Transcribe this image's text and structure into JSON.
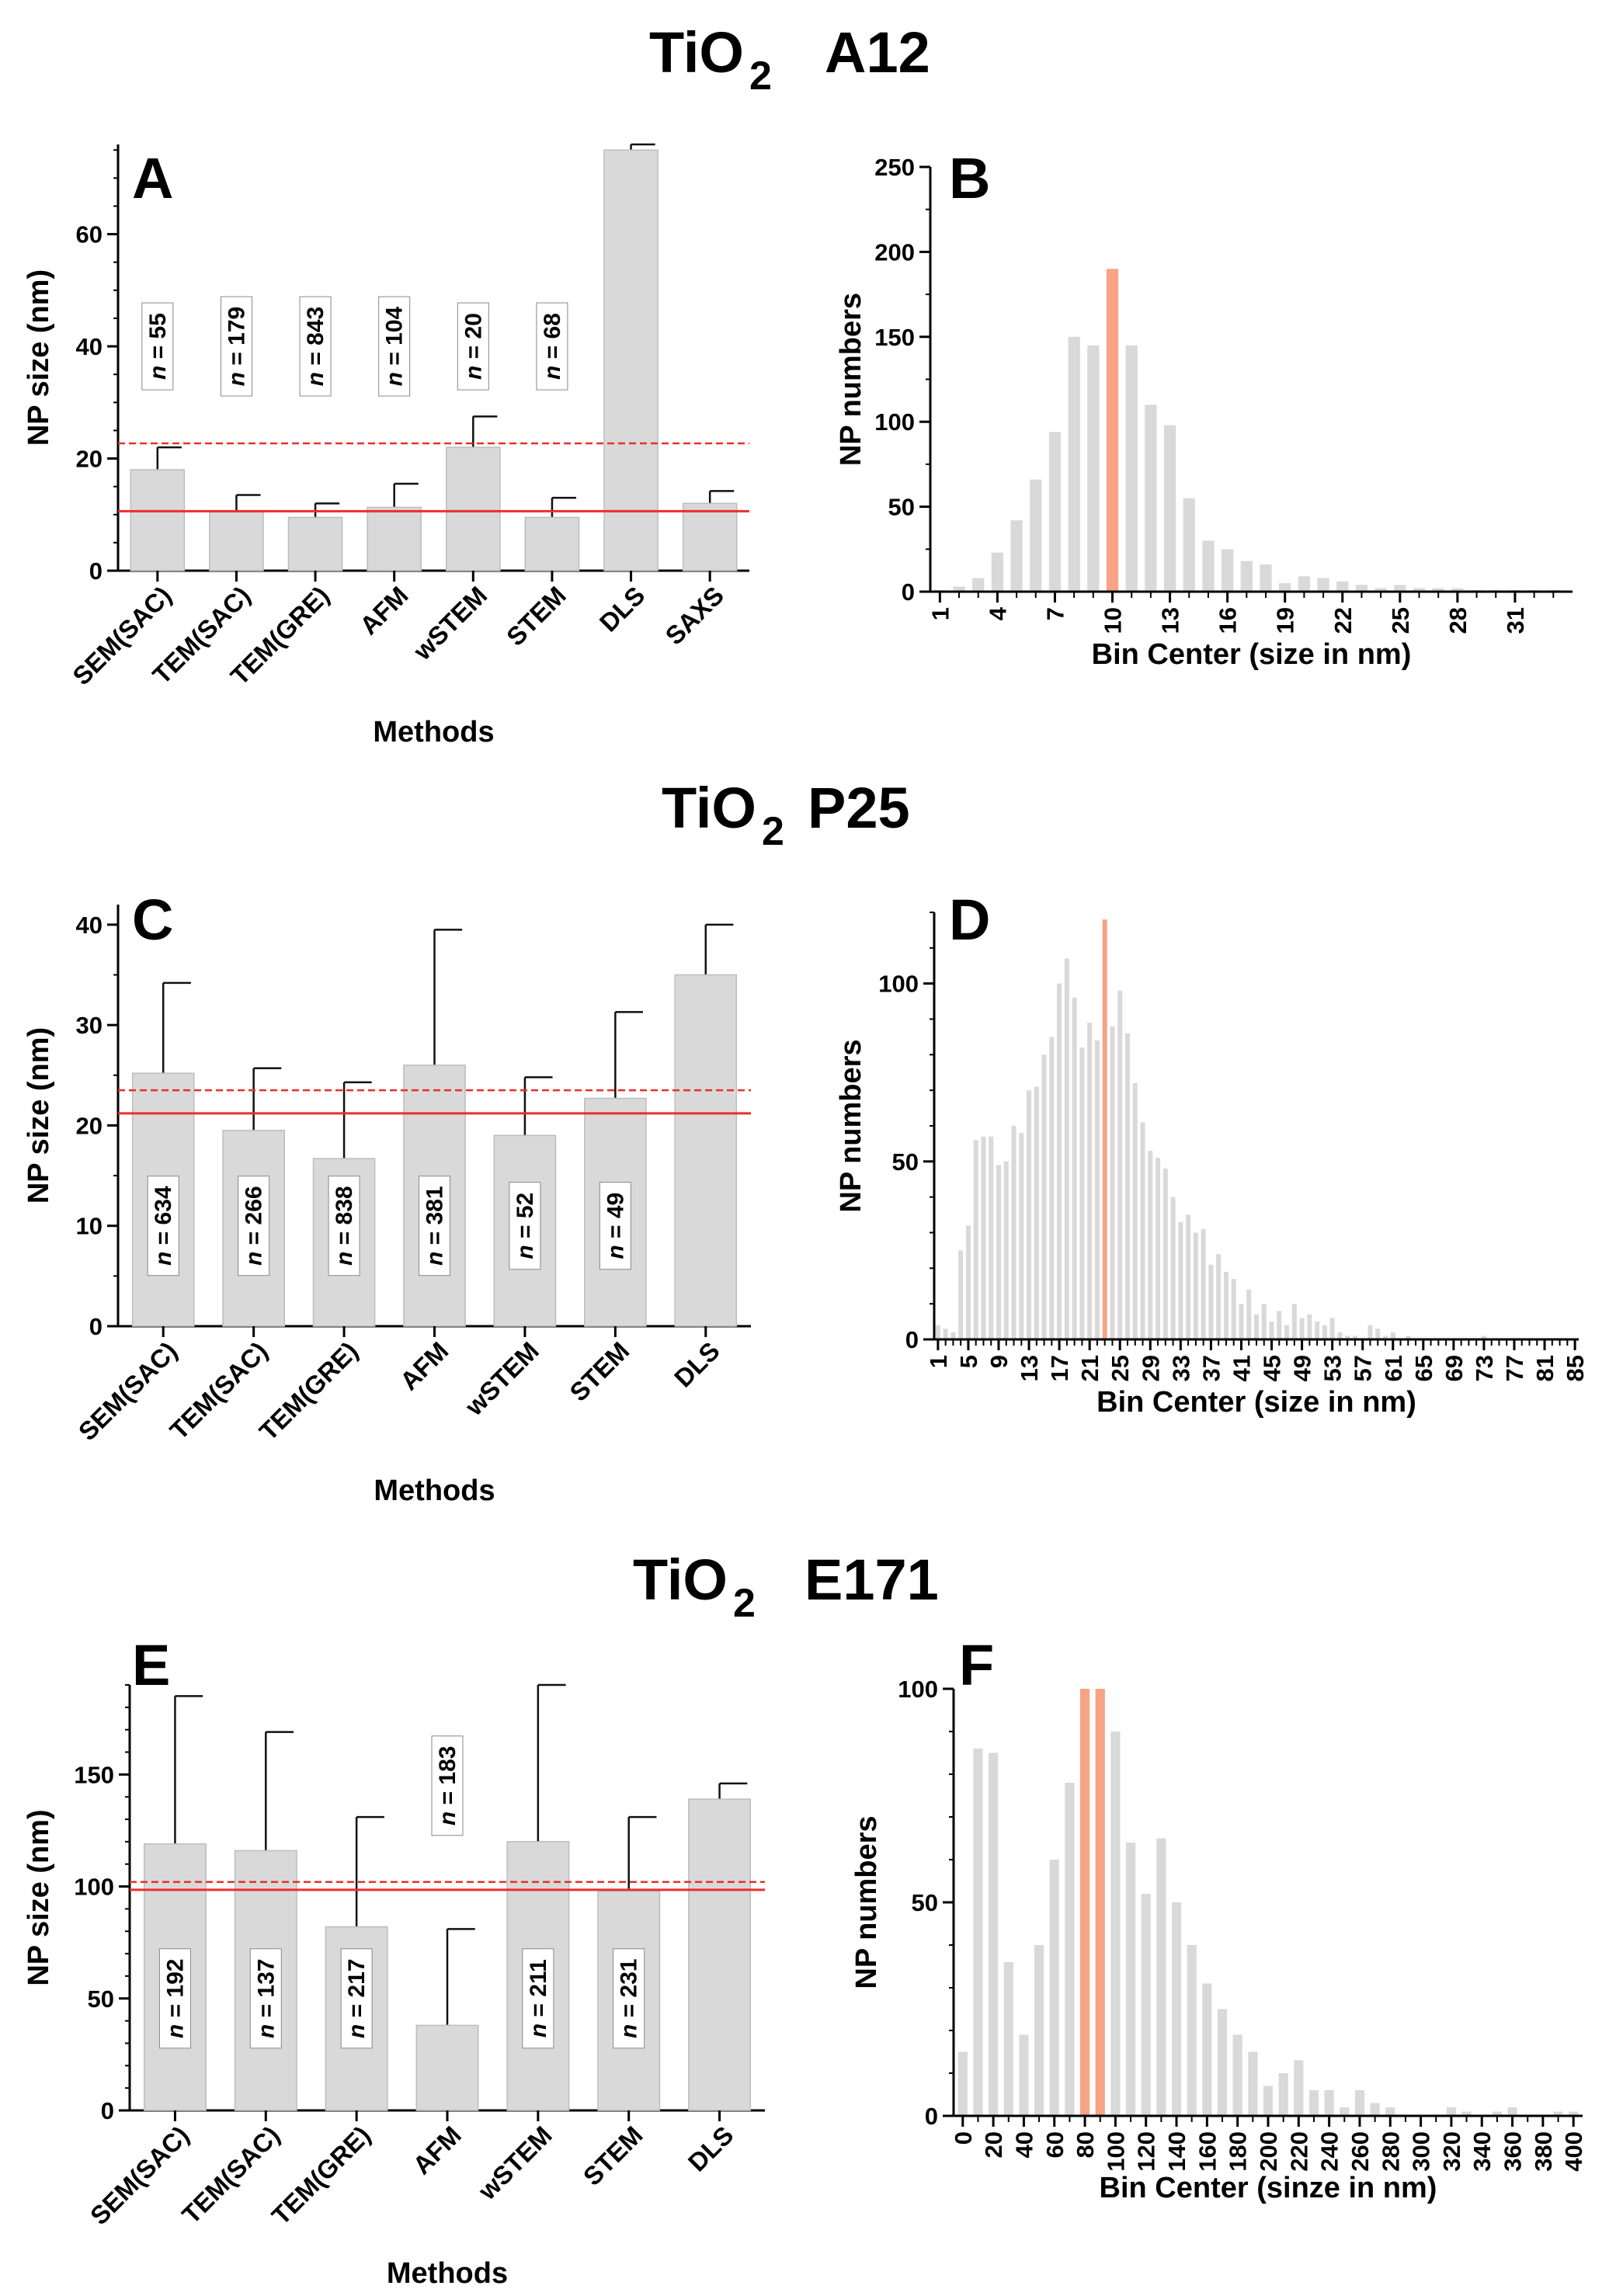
{
  "colors": {
    "bar": "#d9d9d9",
    "bar_stroke": "#bdbdbd",
    "highlight": "#f7a385",
    "ref_line": "#e8302a",
    "axis": "#000000"
  },
  "sections": [
    {
      "id": "a12",
      "title_main": "TiO",
      "title_sub": "2",
      "title_suffix": "A12"
    },
    {
      "id": "p25",
      "title_main": "TiO",
      "title_sub": "2",
      "title_suffix": "P25"
    },
    {
      "id": "e171",
      "title_main": "TiO",
      "title_sub": "2",
      "title_suffix": "E171"
    }
  ],
  "chart_data": [
    {
      "panel": "A",
      "type": "bar",
      "ylabel": "NP size (nm)",
      "xlabel": "Methods",
      "ylim": [
        0,
        76
      ],
      "yticks": [
        0,
        20,
        40,
        60
      ],
      "minor_step": 5,
      "categories": [
        "SEM(SAC)",
        "TEM(SAC)",
        "TEM(GRE)",
        "AFM",
        "wSTEM",
        "STEM",
        "DLS",
        "SAXS"
      ],
      "values": [
        18,
        10.5,
        9.5,
        11.3,
        22,
        9.5,
        75,
        12
      ],
      "errors": [
        4,
        3,
        2.5,
        4.2,
        5.5,
        3.5,
        1,
        2.2
      ],
      "n_labels": [
        "n = 55",
        "n = 179",
        "n = 843",
        "n = 104",
        "n = 20",
        "n = 68",
        "",
        ""
      ],
      "n_label_center": [
        40,
        40,
        40,
        40,
        40,
        40,
        0,
        0
      ],
      "ref_solid": 10.6,
      "ref_dashed": 22.7
    },
    {
      "panel": "B",
      "type": "histogram",
      "ylabel": "NP numbers",
      "xlabel": "Bin Center (size in nm)",
      "ylim": [
        0,
        250
      ],
      "yticks": [
        0,
        50,
        100,
        150,
        200,
        250
      ],
      "minor_step": 25,
      "x": [
        1,
        2,
        3,
        4,
        5,
        6,
        7,
        8,
        9,
        10,
        11,
        12,
        13,
        14,
        15,
        16,
        17,
        18,
        19,
        20,
        21,
        22,
        23,
        24,
        25,
        26,
        27,
        28,
        29,
        30,
        31,
        32,
        33
      ],
      "values": [
        1,
        3,
        8,
        23,
        42,
        66,
        94,
        150,
        145,
        190,
        145,
        110,
        98,
        55,
        30,
        25,
        18,
        16,
        5,
        9,
        8,
        6,
        4,
        2,
        4,
        2,
        2,
        2,
        1,
        1,
        1,
        1,
        1
      ],
      "highlight": [
        10
      ],
      "xticks": [
        1,
        4,
        7,
        10,
        13,
        16,
        19,
        22,
        25,
        28,
        31
      ],
      "xlim": [
        0.5,
        34
      ]
    },
    {
      "panel": "C",
      "type": "bar",
      "ylabel": "NP size (nm)",
      "xlabel": "Methods",
      "ylim": [
        0,
        42
      ],
      "yticks": [
        0,
        10,
        20,
        30,
        40
      ],
      "minor_step": 5,
      "categories": [
        "SEM(SAC)",
        "TEM(SAC)",
        "TEM(GRE)",
        "AFM",
        "wSTEM",
        "STEM",
        "DLS"
      ],
      "values": [
        25.2,
        19.5,
        16.7,
        26,
        19,
        22.7,
        35
      ],
      "errors": [
        9,
        6.2,
        7.6,
        13.5,
        5.8,
        8.6,
        5
      ],
      "n_labels": [
        "n = 634",
        "n = 266",
        "n = 838",
        "n = 381",
        "n = 52",
        "n = 49",
        ""
      ],
      "n_label_center": [
        10,
        10,
        10,
        10,
        10,
        10,
        0
      ],
      "ref_solid": 21.2,
      "ref_dashed": 23.5
    },
    {
      "panel": "D",
      "type": "histogram",
      "ylabel": "NP numbers",
      "xlabel": "Bin Center (size in nm)",
      "ylim": [
        0,
        120
      ],
      "yticks": [
        0,
        50,
        100
      ],
      "minor_step": 10,
      "x": [
        1,
        2,
        3,
        4,
        5,
        6,
        7,
        8,
        9,
        10,
        11,
        12,
        13,
        14,
        15,
        16,
        17,
        18,
        19,
        20,
        21,
        22,
        23,
        24,
        25,
        26,
        27,
        28,
        29,
        30,
        31,
        32,
        33,
        34,
        35,
        36,
        37,
        38,
        39,
        40,
        41,
        42,
        43,
        44,
        45,
        46,
        47,
        48,
        49,
        50,
        51,
        52,
        53,
        54,
        55,
        56,
        57,
        58,
        59,
        60,
        61,
        62,
        63,
        64,
        65,
        66,
        67,
        68,
        69,
        70,
        71,
        72,
        73,
        74,
        75,
        76,
        77,
        78,
        79,
        80,
        81,
        82,
        83,
        84,
        85
      ],
      "values": [
        4,
        3,
        2,
        25,
        32,
        56,
        57,
        57,
        49,
        50,
        60,
        58,
        70,
        71,
        80,
        85,
        100,
        107,
        96,
        82,
        89,
        84,
        118,
        88,
        98,
        86,
        72,
        61,
        53,
        51,
        48,
        40,
        33,
        35,
        30,
        31,
        21,
        24,
        19,
        17,
        10,
        14,
        7,
        10,
        5,
        8,
        4,
        10,
        6,
        7,
        5,
        4,
        6,
        2,
        1,
        1,
        0,
        4,
        3,
        1,
        2,
        0,
        1,
        0,
        0,
        0,
        0,
        0,
        0,
        0,
        0,
        0,
        1,
        0,
        0,
        0,
        0,
        0,
        0,
        0,
        0,
        0,
        0,
        0,
        0
      ],
      "highlight": [
        23
      ],
      "xticks": [
        1,
        5,
        9,
        13,
        17,
        21,
        25,
        29,
        33,
        37,
        41,
        45,
        49,
        53,
        57,
        61,
        65,
        69,
        73,
        77,
        81,
        85
      ],
      "xlim": [
        0.5,
        85.5
      ]
    },
    {
      "panel": "E",
      "type": "bar",
      "ylabel": "NP size (nm)",
      "xlabel": "Methods",
      "ylim": [
        0,
        190
      ],
      "yticks": [
        0,
        50,
        100,
        150
      ],
      "minor_step": 10,
      "categories": [
        "SEM(SAC)",
        "TEM(SAC)",
        "TEM(GRE)",
        "AFM",
        "wSTEM",
        "STEM",
        "DLS"
      ],
      "values": [
        119,
        116,
        82,
        38,
        120,
        98,
        139
      ],
      "errors": [
        66,
        53,
        49,
        43,
        70,
        33,
        7
      ],
      "n_labels": [
        "n = 192",
        "n = 137",
        "n = 217",
        "n = 183",
        "n = 211",
        "n = 231",
        ""
      ],
      "n_label_center": [
        50,
        50,
        50,
        145,
        50,
        50,
        0
      ],
      "ref_solid": 98.5,
      "ref_dashed": 102
    },
    {
      "panel": "F",
      "type": "histogram",
      "ylabel": "NP numbers",
      "xlabel": "Bin Center (sinze in nm)",
      "ylim": [
        0,
        100
      ],
      "yticks": [
        0,
        50,
        100
      ],
      "minor_step": 10,
      "x": [
        0,
        10,
        20,
        30,
        40,
        50,
        60,
        70,
        80,
        90,
        100,
        110,
        120,
        130,
        140,
        150,
        160,
        170,
        180,
        190,
        200,
        210,
        220,
        230,
        240,
        250,
        260,
        270,
        280,
        290,
        300,
        310,
        320,
        330,
        340,
        350,
        360,
        370,
        380,
        390,
        400
      ],
      "values": [
        15,
        86,
        85,
        36,
        19,
        40,
        60,
        78,
        100,
        100,
        90,
        64,
        52,
        65,
        50,
        40,
        31,
        25,
        19,
        15,
        7,
        10,
        13,
        6,
        6,
        2,
        6,
        3,
        2,
        0,
        0,
        0,
        2,
        1,
        0,
        1,
        2,
        0,
        0,
        1,
        1
      ],
      "highlight": [
        80,
        90
      ],
      "xticks": [
        0,
        20,
        40,
        60,
        80,
        100,
        120,
        140,
        160,
        180,
        200,
        220,
        240,
        260,
        280,
        300,
        320,
        340,
        360,
        380,
        400
      ],
      "xlim": [
        -6,
        406
      ]
    }
  ]
}
